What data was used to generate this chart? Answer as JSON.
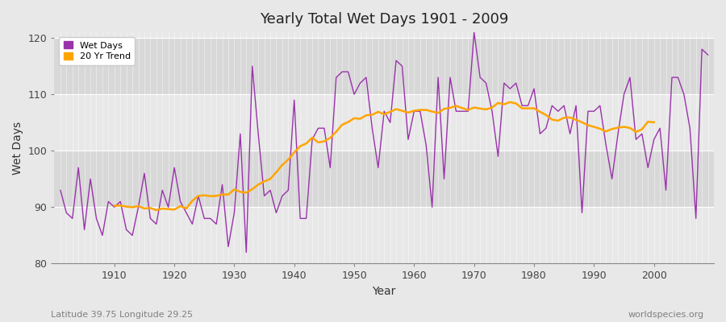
{
  "title": "Yearly Total Wet Days 1901 - 2009",
  "xlabel": "Year",
  "ylabel": "Wet Days",
  "subtitle_left": "Latitude 39.75 Longitude 29.25",
  "subtitle_right": "worldspecies.org",
  "legend_entries": [
    "Wet Days",
    "20 Yr Trend"
  ],
  "wet_days_color": "#9933aa",
  "trend_color": "#ffa500",
  "background_color": "#e8e8e8",
  "band_color_light": "#e8e8e8",
  "band_color_dark": "#d8d8d8",
  "ylim": [
    80,
    121
  ],
  "yticks": [
    80,
    90,
    100,
    110,
    120
  ],
  "years": [
    1901,
    1902,
    1903,
    1904,
    1905,
    1906,
    1907,
    1908,
    1909,
    1910,
    1911,
    1912,
    1913,
    1914,
    1915,
    1916,
    1917,
    1918,
    1919,
    1920,
    1921,
    1922,
    1923,
    1924,
    1925,
    1926,
    1927,
    1928,
    1929,
    1930,
    1931,
    1932,
    1933,
    1934,
    1935,
    1936,
    1937,
    1938,
    1939,
    1940,
    1941,
    1942,
    1943,
    1944,
    1945,
    1946,
    1947,
    1948,
    1949,
    1950,
    1951,
    1952,
    1953,
    1954,
    1955,
    1956,
    1957,
    1958,
    1959,
    1960,
    1961,
    1962,
    1963,
    1964,
    1965,
    1966,
    1967,
    1968,
    1969,
    1970,
    1971,
    1972,
    1973,
    1974,
    1975,
    1976,
    1977,
    1978,
    1979,
    1980,
    1981,
    1982,
    1983,
    1984,
    1985,
    1986,
    1987,
    1988,
    1989,
    1990,
    1991,
    1992,
    1993,
    1994,
    1995,
    1996,
    1997,
    1998,
    1999,
    2000,
    2001,
    2002,
    2003,
    2004,
    2005,
    2006,
    2007,
    2008,
    2009
  ],
  "wet_days": [
    93,
    89,
    88,
    97,
    86,
    95,
    88,
    85,
    91,
    90,
    91,
    86,
    85,
    90,
    96,
    88,
    87,
    93,
    90,
    97,
    91,
    89,
    87,
    92,
    88,
    88,
    87,
    94,
    83,
    89,
    103,
    82,
    115,
    103,
    92,
    93,
    89,
    92,
    93,
    109,
    88,
    88,
    102,
    104,
    104,
    97,
    113,
    114,
    114,
    110,
    112,
    113,
    104,
    97,
    107,
    105,
    116,
    115,
    102,
    107,
    107,
    101,
    90,
    113,
    95,
    113,
    107,
    107,
    107,
    121,
    113,
    112,
    107,
    99,
    112,
    111,
    112,
    108,
    108,
    111,
    103,
    104,
    108,
    107,
    108,
    103,
    108,
    89,
    107,
    107,
    108,
    101,
    95,
    103,
    110,
    113,
    102,
    103,
    97,
    102,
    104,
    93,
    113,
    113,
    110,
    104,
    88,
    118,
    117
  ]
}
